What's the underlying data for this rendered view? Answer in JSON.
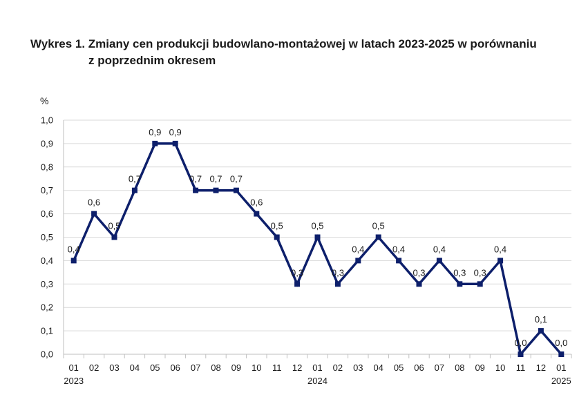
{
  "title": {
    "line1": "Wykres 1. Zmiany cen produkcji budowlano-montażowej w latach 2023-2025 w porównaniu",
    "line2": "z poprzednim okresem"
  },
  "chart_data": {
    "type": "line",
    "unit_label": "%",
    "x": [
      "01",
      "02",
      "03",
      "04",
      "05",
      "06",
      "07",
      "08",
      "09",
      "10",
      "11",
      "12",
      "01",
      "02",
      "03",
      "04",
      "05",
      "06",
      "07",
      "08",
      "09",
      "10",
      "11",
      "12",
      "01"
    ],
    "year_labels": [
      {
        "index": 0,
        "label": "2023"
      },
      {
        "index": 12,
        "label": "2024"
      },
      {
        "index": 24,
        "label": "2025"
      }
    ],
    "series": [
      {
        "values": [
          0.4,
          0.6,
          0.5,
          0.7,
          0.9,
          0.9,
          0.7,
          0.7,
          0.7,
          0.6,
          0.5,
          0.3,
          0.5,
          0.3,
          0.4,
          0.5,
          0.4,
          0.3,
          0.4,
          0.3,
          0.3,
          0.4,
          0.0,
          0.1,
          0.0
        ],
        "labels": [
          "0,4",
          "0,6",
          "0,5",
          "0,7",
          "0,9",
          "0,9",
          "0,7",
          "0,7",
          "0,7",
          "0,6",
          "0,5",
          "0,3",
          "0,5",
          "0,3",
          "0,4",
          "0,5",
          "0,4",
          "0,3",
          "0,4",
          "0,3",
          "0,3",
          "0,4",
          "0,0",
          "0,1",
          "0,0"
        ],
        "color": "#0d1f6b"
      }
    ],
    "ylim": [
      0,
      1.0
    ],
    "yticks": [
      "0,0",
      "0,1",
      "0,2",
      "0,3",
      "0,4",
      "0,5",
      "0,6",
      "0,7",
      "0,8",
      "0,9",
      "1,0"
    ],
    "grid": true,
    "gridColor": "#d9d9d9"
  }
}
